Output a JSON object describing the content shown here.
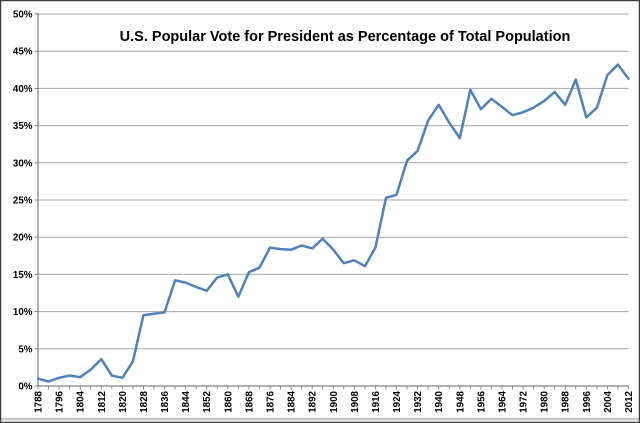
{
  "chart_data": {
    "type": "line",
    "title": "U.S. Popular Vote for President as Percentage of Total Population",
    "xlabel": "",
    "ylabel": "",
    "ylim": [
      0,
      50
    ],
    "ytick_step": 5,
    "grid": "horizontal",
    "legend": "none",
    "x": [
      1788,
      1792,
      1796,
      1800,
      1804,
      1808,
      1812,
      1816,
      1820,
      1824,
      1828,
      1832,
      1836,
      1840,
      1844,
      1848,
      1852,
      1856,
      1860,
      1864,
      1868,
      1872,
      1876,
      1880,
      1884,
      1888,
      1892,
      1896,
      1900,
      1904,
      1908,
      1912,
      1916,
      1920,
      1924,
      1928,
      1932,
      1936,
      1940,
      1944,
      1948,
      1952,
      1956,
      1960,
      1964,
      1968,
      1972,
      1976,
      1980,
      1984,
      1988,
      1992,
      1996,
      2000,
      2004,
      2008,
      2012
    ],
    "series": [
      {
        "name": "Popular vote as percentage of total population",
        "values": [
          1.0,
          0.6,
          1.1,
          1.4,
          1.2,
          2.2,
          3.6,
          1.4,
          1.1,
          3.3,
          9.5,
          9.7,
          9.9,
          14.2,
          13.9,
          13.3,
          12.8,
          14.6,
          15.0,
          12.0,
          15.3,
          15.9,
          18.6,
          18.4,
          18.3,
          18.9,
          18.5,
          19.8,
          18.3,
          16.5,
          16.9,
          16.1,
          18.6,
          25.3,
          25.7,
          30.3,
          31.6,
          35.7,
          37.8,
          35.4,
          33.3,
          39.8,
          37.2,
          38.6,
          37.5,
          36.4,
          36.8,
          37.4,
          38.3,
          39.5,
          37.8,
          41.2,
          36.1,
          37.4,
          41.8,
          43.2,
          41.3
        ]
      }
    ],
    "y_tick_labels": [
      "0%",
      "5%",
      "10%",
      "15%",
      "20%",
      "25%",
      "30%",
      "35%",
      "40%",
      "45%",
      "50%"
    ],
    "x_tick_labels": [
      "1788",
      "1796",
      "1804",
      "1812",
      "1820",
      "1828",
      "1836",
      "1844",
      "1852",
      "1860",
      "1868",
      "1876",
      "1884",
      "1892",
      "1900",
      "1908",
      "1916",
      "1924",
      "1932",
      "1940",
      "1948",
      "1956",
      "1964",
      "1972",
      "1980",
      "1988",
      "1996",
      "2004",
      "2012"
    ],
    "colors": {
      "line": "#4F81BD",
      "gridline": "#A6A6A6",
      "axis": "#808080",
      "tick": "#808080",
      "frame_border": "#3F3F3F",
      "bottom_strip": "#C9C9C9",
      "background": "#FFFFFF"
    }
  }
}
